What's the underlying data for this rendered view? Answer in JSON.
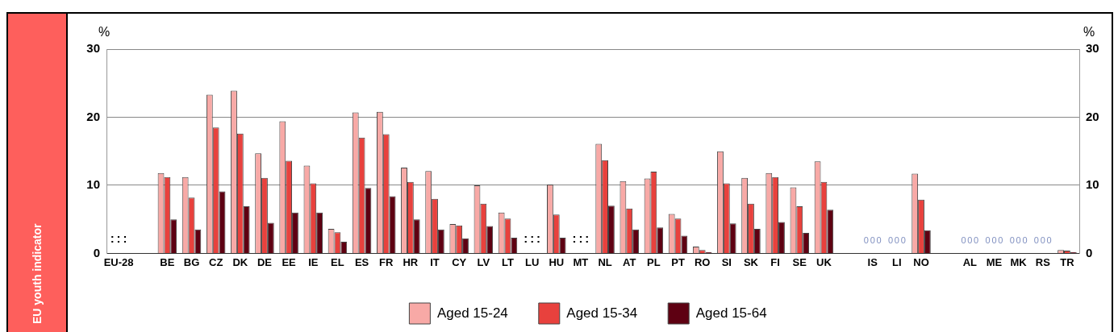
{
  "chart_data": {
    "type": "bar",
    "ylabel": "%",
    "y2label": "%",
    "ylim": [
      0,
      30
    ],
    "yticks": [
      0,
      10,
      20,
      30
    ],
    "y2lim": [
      0,
      30
    ],
    "y2ticks": [
      0,
      10,
      20,
      30
    ],
    "grid": "y",
    "legend": "bottom",
    "annotations": [
      "EU youth indicator"
    ],
    "categories": [
      "EU-28",
      null,
      "BE",
      "BG",
      "CZ",
      "DK",
      "DE",
      "EE",
      "IE",
      "EL",
      "ES",
      "FR",
      "HR",
      "IT",
      "CY",
      "LV",
      "LT",
      "LU",
      "HU",
      "MT",
      "NL",
      "AT",
      "PL",
      "PT",
      "RO",
      "SI",
      "SK",
      "FI",
      "SE",
      "UK",
      null,
      "IS",
      "LI",
      "NO",
      null,
      "AL",
      "ME",
      "MK",
      "RS",
      "TR"
    ],
    "series": [
      {
        "name": "Aged 15-24",
        "color": "#f8a9a6",
        "values": [
          null,
          null,
          11.8,
          11.2,
          23.3,
          23.9,
          14.7,
          19.4,
          12.9,
          3.6,
          20.7,
          20.8,
          12.6,
          12.1,
          4.3,
          10.0,
          6.0,
          null,
          10.1,
          null,
          16.1,
          10.6,
          11.0,
          5.8,
          1.0,
          15.0,
          11.1,
          11.8,
          9.7,
          13.5,
          null,
          null,
          null,
          11.7,
          null,
          null,
          null,
          null,
          null,
          0.5
        ],
        "value_labels": [
          ":",
          null,
          null,
          null,
          null,
          null,
          null,
          null,
          null,
          null,
          null,
          null,
          null,
          null,
          null,
          null,
          null,
          ":",
          null,
          ":",
          null,
          null,
          null,
          null,
          null,
          null,
          null,
          null,
          null,
          null,
          null,
          "0",
          "0",
          null,
          null,
          "0",
          "0",
          "0",
          "0",
          null
        ]
      },
      {
        "name": "Aged 15-34",
        "color": "#e8413d",
        "values": [
          null,
          null,
          11.2,
          8.2,
          18.5,
          17.6,
          11.1,
          13.6,
          10.3,
          3.1,
          17.0,
          17.5,
          10.5,
          8.0,
          4.1,
          7.3,
          5.1,
          null,
          5.7,
          null,
          13.7,
          6.6,
          12.0,
          5.1,
          0.5,
          10.3,
          7.3,
          11.2,
          6.9,
          10.5,
          null,
          null,
          null,
          7.9,
          null,
          null,
          null,
          null,
          null,
          0.4
        ],
        "value_labels": [
          ":",
          null,
          null,
          null,
          null,
          null,
          null,
          null,
          null,
          null,
          null,
          null,
          null,
          null,
          null,
          null,
          null,
          ":",
          null,
          ":",
          null,
          null,
          null,
          null,
          null,
          null,
          null,
          null,
          null,
          null,
          null,
          "0",
          "0",
          null,
          null,
          "0",
          "0",
          "0",
          "0",
          null
        ]
      },
      {
        "name": "Aged 15-64",
        "color": "#5e0012",
        "values": [
          null,
          null,
          5.0,
          3.5,
          9.1,
          6.9,
          4.5,
          6.0,
          6.0,
          1.7,
          9.6,
          8.4,
          5.0,
          3.5,
          2.2,
          4.0,
          2.3,
          null,
          2.3,
          null,
          7.0,
          3.5,
          3.8,
          2.6,
          0.2,
          4.4,
          3.6,
          4.6,
          3.0,
          6.4,
          null,
          null,
          null,
          3.4,
          null,
          null,
          null,
          null,
          null,
          0.2
        ],
        "value_labels": [
          ":",
          null,
          null,
          null,
          null,
          null,
          null,
          null,
          null,
          null,
          null,
          null,
          null,
          null,
          null,
          null,
          null,
          ":",
          null,
          ":",
          null,
          null,
          null,
          null,
          null,
          null,
          null,
          null,
          null,
          null,
          null,
          "0",
          "0",
          null,
          null,
          "0",
          "0",
          "0",
          "0",
          null
        ]
      }
    ]
  }
}
